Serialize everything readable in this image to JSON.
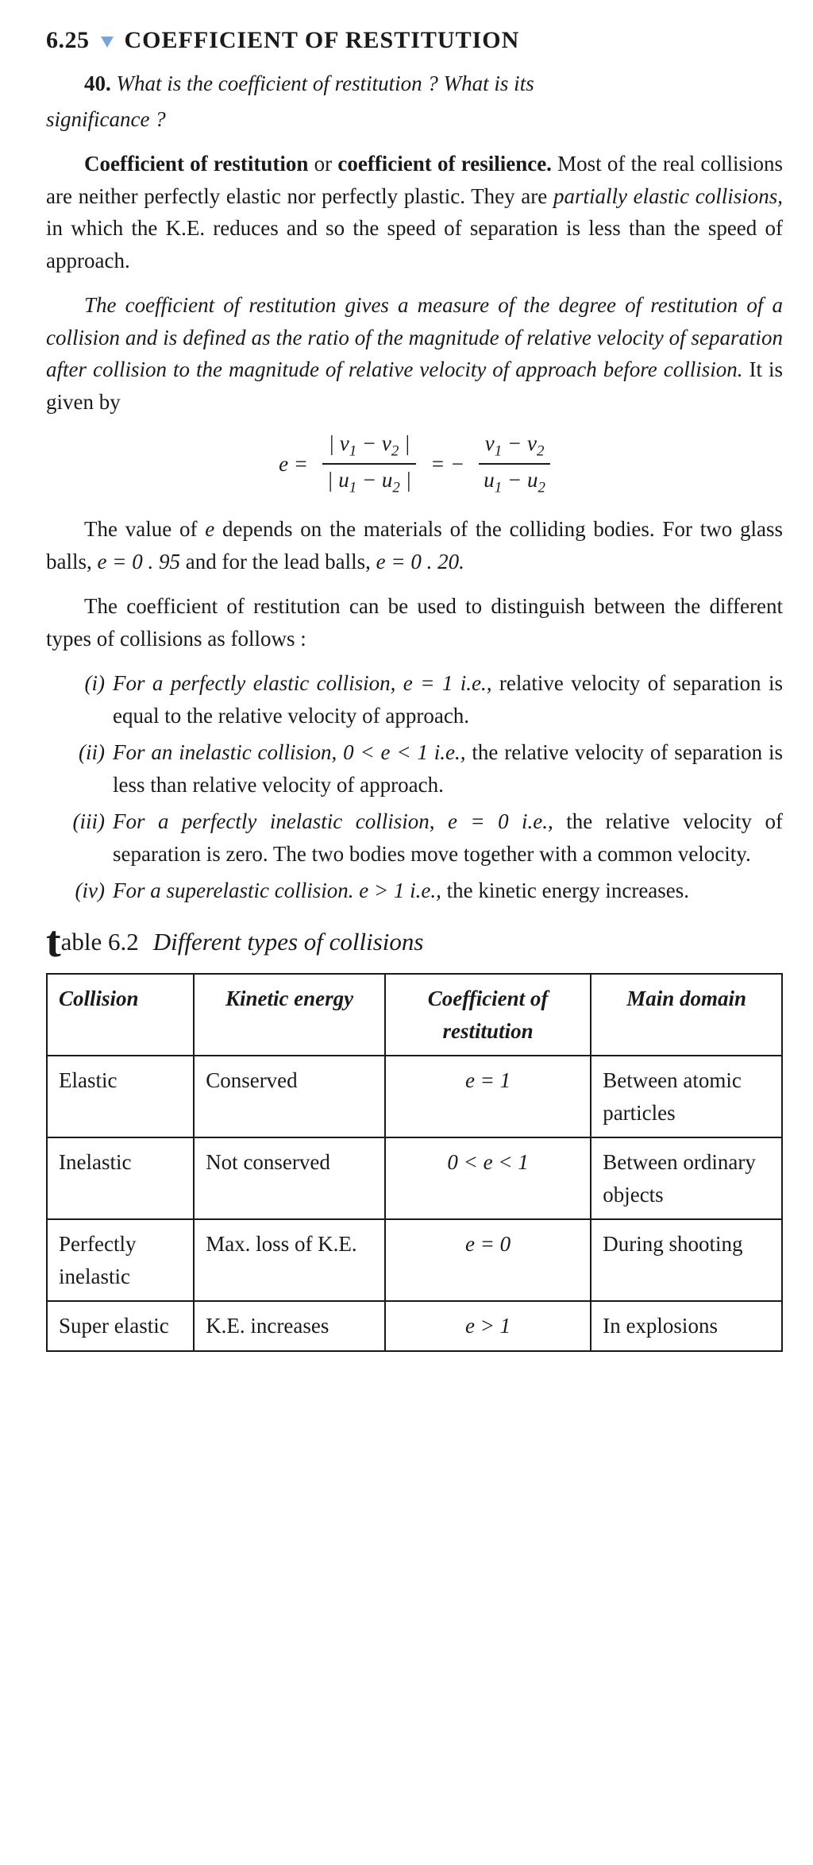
{
  "section": {
    "number": "6.25",
    "title": "COEFFICIENT OF RESTITUTION"
  },
  "question": {
    "number": "40.",
    "text": "What is the coefficient of restitution ? What is its",
    "cont": "significance ?"
  },
  "p1": {
    "lead1": "Coefficient of restitution",
    "mid1": "or",
    "lead2": "coefficient of resilience.",
    "rest1": " Most of the real collisions are neither perfectly elastic nor perfectly plastic. They are ",
    "em1": "partially elastic collisions,",
    "rest2": " in which the K.E. reduces and so the speed of separation is less than the speed of approach."
  },
  "p2": {
    "it": "The coefficient of restitution gives a measure of the degree of restitution of a collision and is defined as the ratio of the magnitude of relative velocity of separation after collision to the magnitude of relative velocity of approach before collision.",
    "tail": " It is given by"
  },
  "eqn": {
    "lhs": "e =",
    "num1a": "| v",
    "num1b": " − v",
    "num1c": " |",
    "den1a": "| u",
    "den1b": " − u",
    "den1c": " |",
    "mid": "= −",
    "num2a": "v",
    "num2b": " − v",
    "den2a": "u",
    "den2b": " − u",
    "s1": "1",
    "s2": "2"
  },
  "p3": {
    "a": "The value of ",
    "e": "e",
    "b": " depends on the materials of the colliding bodies. For two glass balls, ",
    "g": "e = 0 . 95",
    "c": " and for the lead balls, ",
    "l": "e = 0 . 20."
  },
  "p4": "The coefficient of restitution can be used to distinguish between the different types of collisions as follows :",
  "items": [
    {
      "m": "(i)",
      "lead": "For a perfectly elastic collision, e = 1 i.e.,",
      "rest": " relative velocity of separation is equal to the relative velocity of approach."
    },
    {
      "m": "(ii)",
      "lead": "For an inelastic collision, 0 < e < 1 i.e.,",
      "rest": " the relative velocity of separation is less than relative velocity of approach."
    },
    {
      "m": "(iii)",
      "lead": "For a perfectly inelastic collision, e = 0 i.e.,",
      "rest": " the relative velocity of separation is zero. The two bodies move together with a common velocity."
    },
    {
      "m": "(iv)",
      "lead": "For a superelastic collision. e > 1 i.e.,",
      "rest": " the kinetic energy increases."
    }
  ],
  "tablecap": {
    "able": "able 6.2",
    "caption": "Different types of collisions"
  },
  "table": {
    "columns": [
      "Collision",
      "Kinetic energy",
      "Coefficient of restitution",
      "Main domain"
    ],
    "rows": [
      [
        "Elastic",
        "Conserved",
        "e = 1",
        "Between atomic particles"
      ],
      [
        "Inelastic",
        "Not conserved",
        "0 < e < 1",
        "Between ordinary objects"
      ],
      [
        "Perfectly inelastic",
        "Max. loss of K.E.",
        "e = 0",
        "During shooting"
      ],
      [
        "Super elastic",
        "K.E. increases",
        "e > 1",
        "In explosions"
      ]
    ],
    "col_widths": [
      "20%",
      "26%",
      "28%",
      "26%"
    ]
  },
  "colors": {
    "arrow": "#7aa5d6",
    "text": "#1a1a1a",
    "bg": "#ffffff"
  }
}
